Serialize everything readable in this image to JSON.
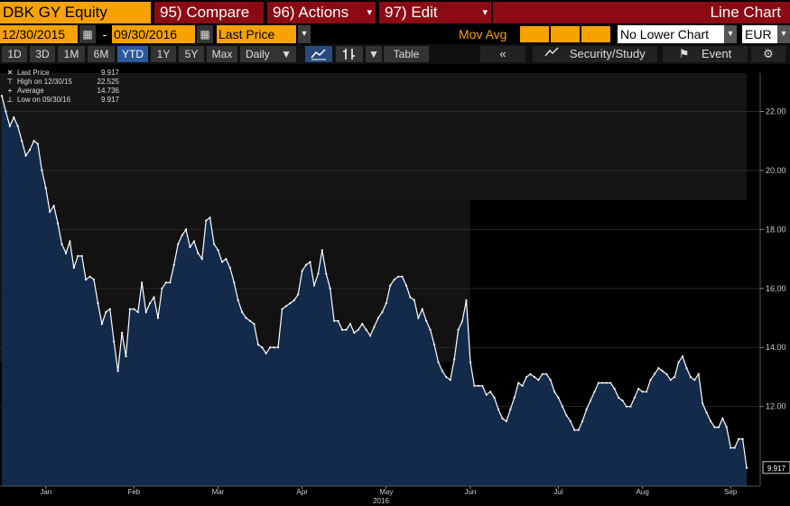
{
  "header": {
    "ticker": "DBK GY Equity",
    "compare": {
      "num": "95)",
      "label": "Compare"
    },
    "actions": {
      "num": "96)",
      "label": "Actions"
    },
    "edit": {
      "num": "97)",
      "label": "Edit"
    },
    "chart_type": "Line Chart"
  },
  "controls": {
    "start_date": "12/30/2015",
    "date_sep": "-",
    "end_date": "09/30/2016",
    "field": "Last Price",
    "mov_avg": "Mov Avg",
    "lower_chart": "No Lower Chart",
    "currency": "EUR"
  },
  "ranges": {
    "items": [
      "1D",
      "3D",
      "1M",
      "6M",
      "YTD",
      "1Y",
      "5Y",
      "Max"
    ],
    "active": "YTD",
    "frequency": "Daily",
    "table": "Table",
    "security_study": "Security/Study",
    "event": "Event"
  },
  "legend": {
    "last_label": "Last Price",
    "last_value": "9.917",
    "high_label": "High on 12/30/15",
    "high_value": "22.525",
    "avg_label": "Average",
    "avg_value": "14.736",
    "low_label": "Low on 09/30/16",
    "low_value": "9.917"
  },
  "colors": {
    "accent_orange": "#f7a200",
    "button_red": "#8b0a14",
    "area_fill": "#142a4a",
    "line": "#ffffff"
  },
  "chart_data": {
    "type": "area",
    "title": "",
    "xlabel": "2016",
    "ylabel": "",
    "ylim": [
      9.3,
      23.3
    ],
    "yticks": [
      "22.00",
      "20.00",
      "18.00",
      "16.00",
      "14.00",
      "12.00"
    ],
    "ytick_values": [
      22,
      20,
      18,
      16,
      14,
      12
    ],
    "months": [
      "Jan",
      "Feb",
      "Mar",
      "Apr",
      "May",
      "Jun",
      "Jul",
      "Aug",
      "Sep"
    ],
    "month_index": [
      11,
      33,
      54,
      75,
      96,
      117,
      139,
      160,
      182
    ],
    "last_value_label": "9.917",
    "last_value": 9.917,
    "values": [
      22.53,
      22.0,
      21.5,
      21.8,
      21.5,
      21.0,
      20.5,
      20.7,
      21.0,
      20.9,
      20.0,
      19.4,
      18.6,
      18.8,
      18.2,
      17.5,
      17.2,
      17.6,
      16.7,
      17.1,
      17.1,
      16.3,
      16.4,
      16.3,
      15.5,
      14.8,
      15.2,
      15.3,
      14.2,
      13.2,
      14.5,
      13.7,
      15.3,
      15.3,
      15.2,
      16.2,
      15.2,
      15.5,
      15.7,
      15.0,
      16.0,
      16.2,
      16.2,
      16.8,
      17.5,
      17.8,
      18.0,
      17.4,
      17.6,
      17.2,
      17.0,
      18.3,
      18.4,
      17.5,
      17.3,
      16.9,
      17.0,
      16.7,
      16.2,
      15.6,
      15.2,
      15.0,
      14.9,
      14.8,
      14.1,
      14.0,
      13.8,
      14.0,
      14.0,
      14.0,
      15.3,
      15.4,
      15.5,
      15.6,
      15.8,
      16.6,
      16.8,
      16.9,
      16.1,
      16.5,
      17.3,
      16.5,
      16.0,
      14.9,
      14.9,
      14.6,
      14.6,
      14.8,
      14.5,
      14.6,
      14.8,
      14.6,
      14.4,
      14.7,
      15.0,
      15.2,
      15.5,
      16.1,
      16.3,
      16.4,
      16.4,
      16.1,
      15.7,
      15.6,
      15.0,
      15.3,
      14.9,
      14.6,
      14.1,
      13.5,
      13.2,
      13.0,
      12.9,
      13.6,
      14.6,
      14.9,
      15.6,
      13.5,
      12.7,
      12.7,
      12.7,
      12.4,
      12.5,
      12.3,
      11.9,
      11.6,
      11.5,
      11.9,
      12.3,
      12.8,
      12.7,
      13.0,
      13.1,
      13.0,
      12.9,
      13.1,
      13.1,
      12.9,
      12.5,
      12.3,
      12.0,
      11.7,
      11.5,
      11.2,
      11.2,
      11.5,
      11.9,
      12.2,
      12.5,
      12.8,
      12.8,
      12.8,
      12.8,
      12.6,
      12.3,
      12.2,
      12.0,
      12.0,
      12.3,
      12.6,
      12.5,
      12.5,
      12.9,
      13.1,
      13.3,
      13.2,
      13.1,
      12.9,
      13.0,
      13.5,
      13.7,
      13.3,
      13.0,
      12.9,
      13.1,
      12.1,
      11.8,
      11.5,
      11.3,
      11.3,
      11.6,
      11.3,
      10.6,
      10.6,
      10.9,
      10.9,
      9.917
    ]
  }
}
